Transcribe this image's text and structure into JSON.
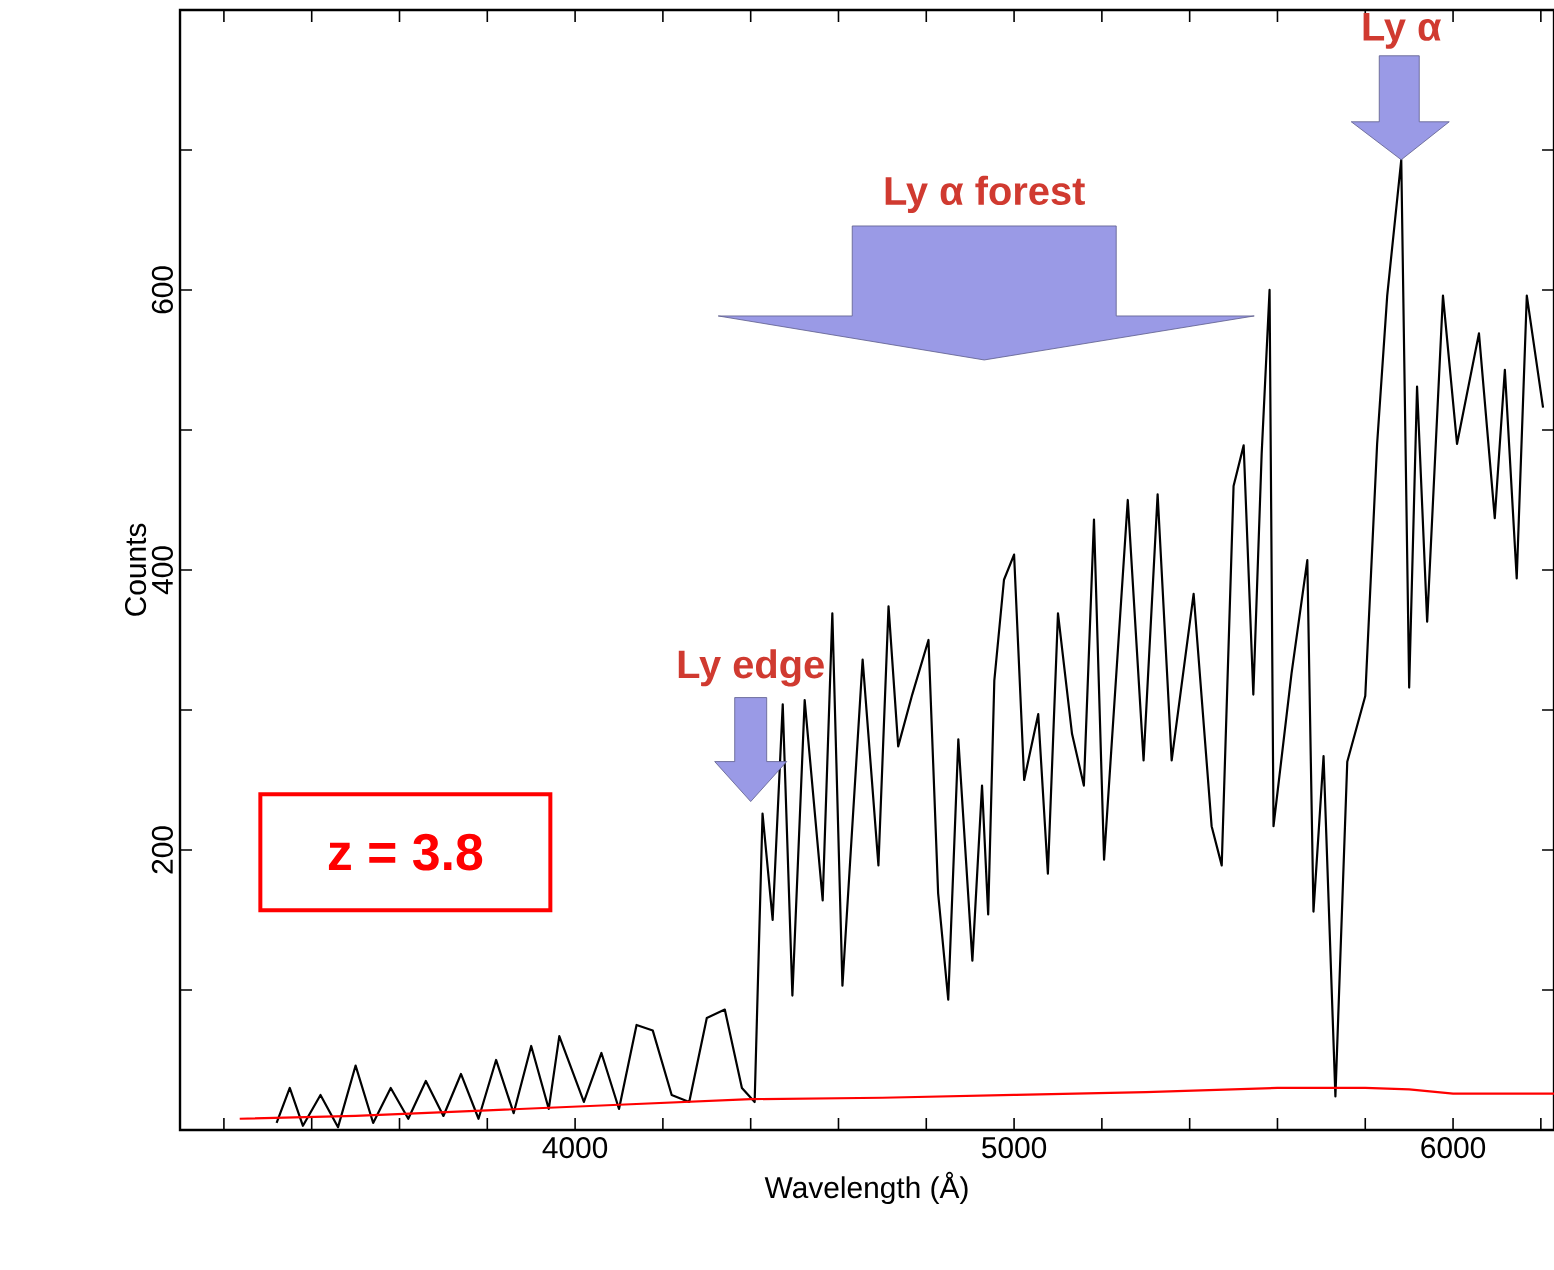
{
  "chart_data": {
    "type": "line",
    "xlabel": "Wavelength (Å)",
    "ylabel": "Counts",
    "xlim": [
      3100,
      6230
    ],
    "ylim": [
      0,
      800
    ],
    "xticks": [
      {
        "value": 3200,
        "label": null
      },
      {
        "value": 3400,
        "label": null
      },
      {
        "value": 3600,
        "label": null
      },
      {
        "value": 3800,
        "label": null
      },
      4000,
      {
        "value": 4200,
        "label": null
      },
      {
        "value": 4400,
        "label": null
      },
      {
        "value": 4600,
        "label": null
      },
      {
        "value": 4800,
        "label": null
      },
      5000,
      {
        "value": 5200,
        "label": null
      },
      {
        "value": 5400,
        "label": null
      },
      {
        "value": 5600,
        "label": null
      },
      {
        "value": 5800,
        "label": null
      },
      6000,
      {
        "value": 6200,
        "label": null
      }
    ],
    "yticks": [
      {
        "value": 100,
        "label": null
      },
      200,
      {
        "value": 300,
        "label": null
      },
      400,
      {
        "value": 500,
        "label": null
      },
      600,
      {
        "value": 700,
        "label": null
      }
    ],
    "annotations": [
      "Ly edge",
      "Ly α forest",
      "Ly α",
      "z = 3.8"
    ],
    "series": [
      {
        "color": "#000000",
        "x": [
          3320,
          3350,
          3380,
          3420,
          3460,
          3500,
          3540,
          3580,
          3620,
          3660,
          3700,
          3740,
          3780,
          3820,
          3860,
          3900,
          3940,
          3964,
          4020,
          4060,
          4100,
          4140,
          4177,
          4220,
          4260,
          4300,
          4341,
          4380,
          4409,
          4427,
          4450,
          4473,
          4495,
          4523,
          4564,
          4586,
          4609,
          4655,
          4691,
          4714,
          4736,
          4768,
          4805,
          4827,
          4850,
          4873,
          4905,
          4927,
          4941,
          4955,
          4977,
          5000,
          5023,
          5055,
          5077,
          5100,
          5132,
          5159,
          5182,
          5205,
          5259,
          5295,
          5327,
          5359,
          5409,
          5450,
          5473,
          5500,
          5523,
          5545,
          5564,
          5582,
          5591,
          5632,
          5668,
          5682,
          5705,
          5732,
          5759,
          5800,
          5827,
          5850,
          5882,
          5900,
          5918,
          5941,
          5977,
          6009,
          6059,
          6095,
          6118,
          6145,
          6168,
          6205
        ],
        "values": [
          5,
          30,
          3,
          25,
          2,
          46,
          5,
          30,
          8,
          35,
          10,
          40,
          8,
          50,
          12,
          60,
          15,
          67,
          20,
          55,
          15,
          75,
          71,
          25,
          20,
          80,
          86,
          30,
          20,
          226,
          150,
          304,
          96,
          307,
          164,
          369,
          103,
          336,
          189,
          374,
          274,
          311,
          350,
          169,
          93,
          279,
          121,
          246,
          154,
          321,
          393,
          411,
          250,
          297,
          183,
          369,
          283,
          246,
          436,
          193,
          450,
          264,
          454,
          264,
          383,
          217,
          189,
          460,
          489,
          311,
          483,
          600,
          217,
          326,
          407,
          156,
          267,
          24,
          263,
          310,
          490,
          596,
          693,
          316,
          531,
          363,
          596,
          490,
          569,
          437,
          543,
          394,
          596,
          516
        ]
      },
      {
        "color": "#ff0000",
        "x": [
          3236,
          3500,
          3800,
          4100,
          4400,
          4700,
          5000,
          5300,
          5600,
          5800,
          5900,
          6000,
          6230
        ],
        "values": [
          8,
          10,
          14,
          18,
          22,
          23,
          25,
          27,
          30,
          30,
          29,
          26,
          26
        ]
      }
    ]
  }
}
